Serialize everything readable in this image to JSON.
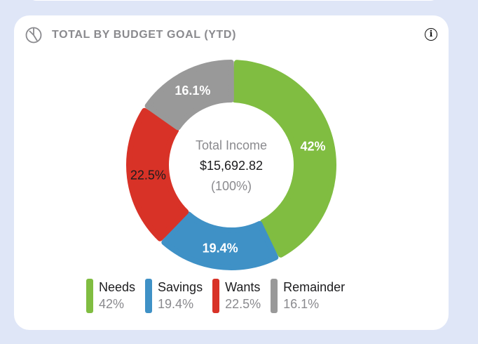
{
  "card": {
    "title": "TOTAL BY BUDGET GOAL (YTD)",
    "header_icon": "pie-chart-icon",
    "info_icon": "info-icon",
    "info_glyph": "i"
  },
  "center": {
    "label": "Total Income",
    "amount": "$15,692.82",
    "percent": "(100%)"
  },
  "chart_data": {
    "type": "pie",
    "title": "TOTAL BY BUDGET GOAL (YTD)",
    "categories": [
      "Needs",
      "Savings",
      "Wants",
      "Remainder"
    ],
    "values": [
      42,
      19.4,
      22.5,
      16.1
    ],
    "labels": [
      "42%",
      "19.4%",
      "22.5%",
      "16.1%"
    ],
    "colors": [
      "#80bd41",
      "#3f91c6",
      "#d83227",
      "#999999"
    ],
    "label_colors": [
      "#ffffff",
      "#ffffff",
      "#1c1c1e",
      "#ffffff"
    ],
    "legend_placement": "bottom"
  },
  "legend": [
    {
      "name": "Needs",
      "value": "42%",
      "color": "#80bd41"
    },
    {
      "name": "Savings",
      "value": "19.4%",
      "color": "#3f91c6"
    },
    {
      "name": "Wants",
      "value": "22.5%",
      "color": "#d83227"
    },
    {
      "name": "Remainder",
      "value": "16.1%",
      "color": "#999999"
    }
  ]
}
